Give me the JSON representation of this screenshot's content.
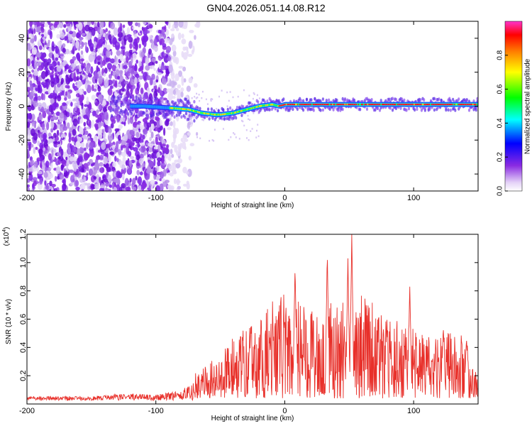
{
  "title": "GN04.2026.051.14.08.R12",
  "chart_data": [
    {
      "type": "heatmap",
      "name": "spectrogram",
      "xlabel": "Height of straight line (km)",
      "ylabel": "Frequency (Hz)",
      "xlim": [
        -200,
        150
      ],
      "ylim": [
        -50,
        50
      ],
      "xticks": [
        -200,
        -100,
        0,
        100
      ],
      "xtick_labels": [
        "-200",
        "-100",
        "0",
        "100"
      ],
      "yticks": [
        -40,
        -20,
        0,
        20,
        40
      ],
      "ytick_labels": [
        "-40",
        "-20",
        "0",
        "20",
        "40"
      ],
      "ridge": {
        "x": [
          -130,
          -110,
          -90,
          -75,
          -65,
          -55,
          -50,
          -40,
          -30,
          -20,
          -10,
          -5,
          0,
          50,
          100,
          150
        ],
        "freq": [
          0,
          0,
          -1,
          -2,
          -4,
          -5,
          -5,
          -4,
          -2,
          0,
          1,
          0,
          1,
          1,
          1,
          1
        ]
      },
      "colorbar": {
        "label": "Normalized spectral amplitude",
        "range": [
          0,
          1
        ],
        "ticks": [
          0.0,
          0.2,
          0.4,
          0.6,
          0.8
        ],
        "tick_labels": [
          "0.0",
          "0.2",
          "0.4",
          "0.6",
          "0.8"
        ],
        "colors": [
          "#ffffff",
          "#e4d2f7",
          "#8a2be2",
          "#0000ff",
          "#00ffff",
          "#00ff00",
          "#ffff00",
          "#ff8000",
          "#ff0000",
          "#ff33cc"
        ]
      }
    },
    {
      "type": "line",
      "name": "snr",
      "xlabel": "Height of straight line (km)",
      "ylabel": "SNR (10 * v/v)",
      "scale_label": "(x10",
      "scale_exp": "4",
      "scale_close": ")",
      "xlim": [
        -200,
        150
      ],
      "ylim": [
        0,
        1.2
      ],
      "xticks": [
        -200,
        -100,
        0,
        100
      ],
      "xtick_labels": [
        "-200",
        "-100",
        "0",
        "100"
      ],
      "yticks": [
        0.2,
        0.4,
        0.6,
        0.8,
        1.0,
        1.2
      ],
      "ytick_labels": [
        "0.2",
        "0.4",
        "0.6",
        "0.8",
        "1.0",
        "1.2"
      ],
      "color": "#e8302a",
      "envelope": {
        "x": [
          -200,
          -150,
          -120,
          -100,
          -80,
          -70,
          -60,
          -50,
          -40,
          -30,
          -20,
          -10,
          0,
          10,
          20,
          30,
          40,
          50,
          60,
          70,
          80,
          90,
          100,
          110,
          120,
          130,
          140,
          150
        ],
        "y": [
          0.05,
          0.05,
          0.07,
          0.06,
          0.1,
          0.15,
          0.2,
          0.25,
          0.35,
          0.4,
          0.45,
          0.55,
          0.6,
          0.55,
          0.5,
          0.55,
          0.55,
          0.6,
          0.6,
          0.55,
          0.45,
          0.45,
          0.4,
          0.35,
          0.35,
          0.4,
          0.35,
          0.1
        ]
      },
      "peaks": [
        {
          "x": 8,
          "y": 0.98
        },
        {
          "x": 33,
          "y": 1.08
        },
        {
          "x": 52,
          "y": 1.2
        },
        {
          "x": 49,
          "y": 1.03
        },
        {
          "x": 97,
          "y": 0.83
        },
        {
          "x": 123,
          "y": 0.55
        },
        {
          "x": 141,
          "y": 0.47
        }
      ]
    }
  ]
}
